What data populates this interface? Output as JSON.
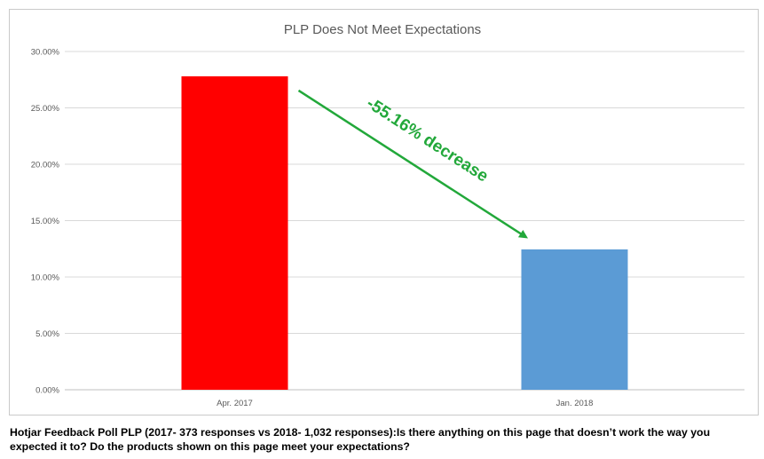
{
  "chart_data": {
    "type": "bar",
    "title": "PLP Does Not Meet Expectations",
    "categories": [
      "Apr. 2017",
      "Jan. 2018"
    ],
    "values": [
      27.8,
      12.45
    ],
    "bar_colors": [
      "#FF0000",
      "#5B9BD5"
    ],
    "ylim": [
      0,
      30
    ],
    "y_ticks": [
      "0.00%",
      "5.00%",
      "10.00%",
      "15.00%",
      "20.00%",
      "25.00%",
      "30.00%"
    ],
    "grid": true,
    "annotation": {
      "text": "-55.16% decrease",
      "color": "#22A83A"
    }
  },
  "caption": "Hotjar Feedback Poll PLP (2017- 373 responses vs 2018- 1,032 responses):Is there anything on this page that doesn’t work the way you expected it to? Do the products shown on this page meet your expectations?"
}
